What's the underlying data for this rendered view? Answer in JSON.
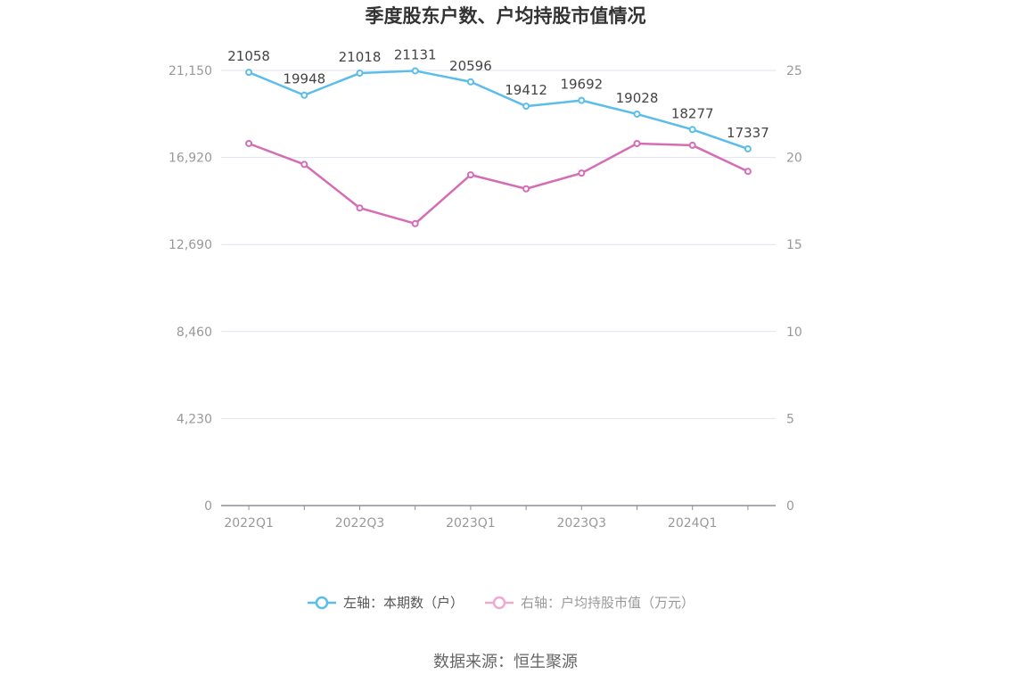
{
  "chart_data": {
    "type": "line",
    "title": "季度股东户数、户均持股市值情况",
    "categories": [
      "2022Q1",
      "2022Q2",
      "2022Q3",
      "2022Q4",
      "2023Q1",
      "2023Q2",
      "2023Q3",
      "2023Q4",
      "2024Q1",
      "2024Q2"
    ],
    "x_tick_labels": [
      "2022Q1",
      "2022Q3",
      "2023Q1",
      "2023Q3",
      "2024Q1"
    ],
    "left_axis": {
      "ylim": [
        0,
        21150
      ],
      "tick_labels": [
        "0",
        "4,230",
        "8,460",
        "12,690",
        "16,920",
        "21,150"
      ]
    },
    "right_axis": {
      "ylim": [
        0,
        25
      ],
      "tick_labels": [
        "0",
        "5",
        "10",
        "15",
        "20",
        "25"
      ]
    },
    "series": [
      {
        "name": "左轴：本期数（户）",
        "axis": "left",
        "color": "#5bbde9",
        "values": [
          21058,
          19948,
          21018,
          21131,
          20596,
          19412,
          19692,
          19028,
          18277,
          17337
        ],
        "labels": [
          "21058",
          "19948",
          "21018",
          "21131",
          "20596",
          "19412",
          "19692",
          "19028",
          "18277",
          "17337"
        ]
      },
      {
        "name": "右轴：户均持股市值（万元）",
        "axis": "right",
        "color": "#d46db5",
        "legend_color": "#eeaad2",
        "values": [
          20.8,
          19.6,
          17.1,
          16.2,
          19.0,
          18.2,
          19.1,
          20.8,
          20.7,
          19.2
        ]
      }
    ],
    "grid": true,
    "legend_position": "bottom-center"
  },
  "source": "数据来源：恒生聚源"
}
